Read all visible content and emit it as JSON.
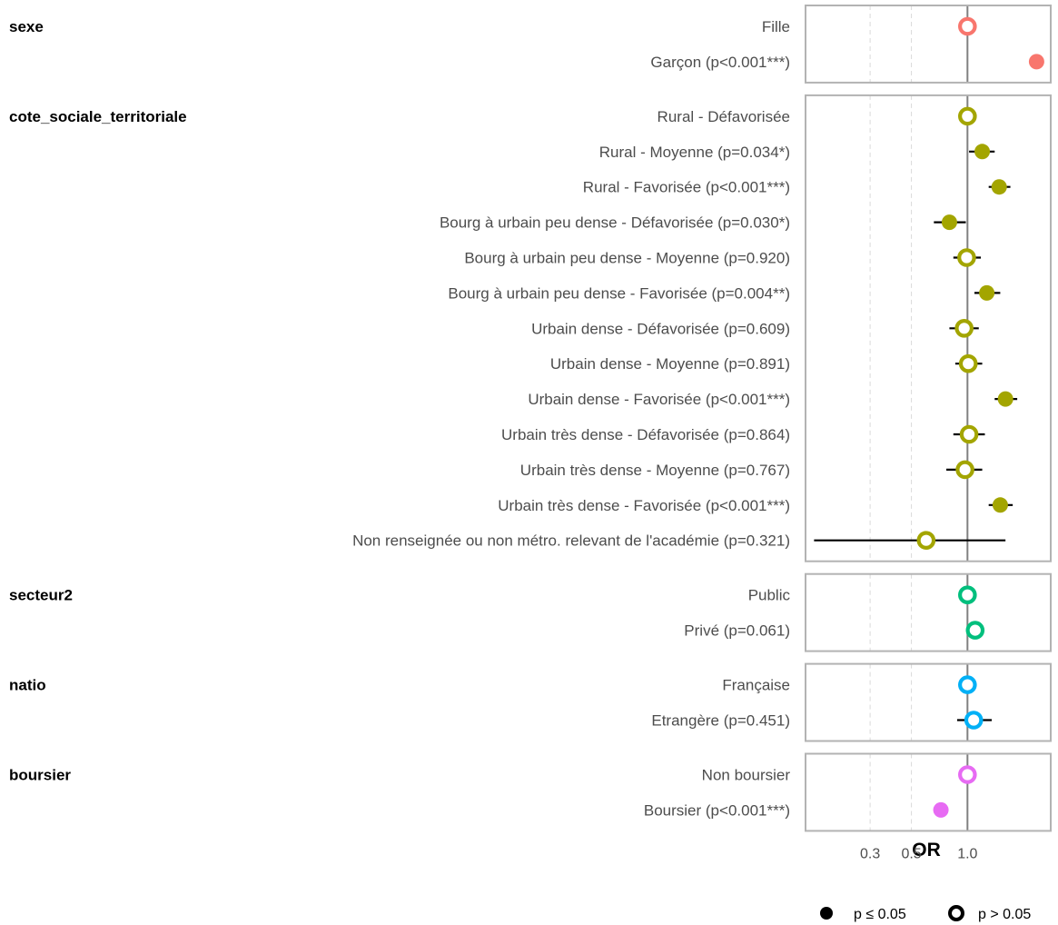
{
  "chart_data": {
    "type": "forest",
    "xlabel": "OR",
    "x_scale": "log",
    "xlim": [
      0.135,
      2.8
    ],
    "x_ticks": [
      {
        "value": 0.3,
        "label": "0.3"
      },
      {
        "value": 0.5,
        "label": "0.5"
      },
      {
        "value": 1.0,
        "label": "1.0"
      }
    ],
    "reference_line": 1.0,
    "groups": [
      {
        "name": "sexe",
        "color": "#F8766D",
        "rows": [
          {
            "label": "Fille",
            "or": 1.0,
            "ci": null,
            "significant": false
          },
          {
            "label": "Garçon (p<0.001***)",
            "or": 2.35,
            "ci": [
              2.25,
              2.45
            ],
            "significant": true
          }
        ]
      },
      {
        "name": "cote_sociale_territoriale",
        "color": "#A3A500",
        "rows": [
          {
            "label": "Rural - Défavorisée",
            "or": 1.0,
            "ci": null,
            "significant": false
          },
          {
            "label": "Rural - Moyenne (p=0.034*)",
            "or": 1.2,
            "ci": [
              1.02,
              1.4
            ],
            "significant": true
          },
          {
            "label": "Rural - Favorisée (p<0.001***)",
            "or": 1.48,
            "ci": [
              1.3,
              1.7
            ],
            "significant": true
          },
          {
            "label": "Bourg à urbain peu dense - Défavorisée (p=0.030*)",
            "or": 0.8,
            "ci": [
              0.66,
              0.98
            ],
            "significant": true
          },
          {
            "label": "Bourg à urbain peu dense - Moyenne (p=0.920)",
            "or": 0.99,
            "ci": [
              0.84,
              1.18
            ],
            "significant": false
          },
          {
            "label": "Bourg à urbain peu dense - Favorisée (p=0.004**)",
            "or": 1.27,
            "ci": [
              1.09,
              1.5
            ],
            "significant": true
          },
          {
            "label": "Urbain dense - Défavorisée (p=0.609)",
            "or": 0.96,
            "ci": [
              0.8,
              1.15
            ],
            "significant": false
          },
          {
            "label": "Urbain dense - Moyenne (p=0.891)",
            "or": 1.01,
            "ci": [
              0.86,
              1.2
            ],
            "significant": false
          },
          {
            "label": "Urbain dense - Favorisée (p<0.001***)",
            "or": 1.6,
            "ci": [
              1.4,
              1.85
            ],
            "significant": true
          },
          {
            "label": "Urbain très dense - Défavorisée (p=0.864)",
            "or": 1.02,
            "ci": [
              0.84,
              1.24
            ],
            "significant": false
          },
          {
            "label": "Urbain très dense - Moyenne (p=0.767)",
            "or": 0.97,
            "ci": [
              0.77,
              1.2
            ],
            "significant": false
          },
          {
            "label": "Urbain très dense - Favorisée (p<0.001***)",
            "or": 1.5,
            "ci": [
              1.3,
              1.75
            ],
            "significant": true
          },
          {
            "label": "Non renseignée ou non métro. relevant de l'académie (p=0.321)",
            "or": 0.6,
            "ci": [
              0.15,
              1.6
            ],
            "significant": false
          }
        ]
      },
      {
        "name": "secteur2",
        "color": "#00BF7D",
        "rows": [
          {
            "label": "Public",
            "or": 1.0,
            "ci": null,
            "significant": false
          },
          {
            "label": "Privé (p=0.061)",
            "or": 1.1,
            "ci": [
              1.0,
              1.2
            ],
            "significant": false
          }
        ]
      },
      {
        "name": "natio",
        "color": "#00B0F6",
        "rows": [
          {
            "label": "Française",
            "or": 1.0,
            "ci": null,
            "significant": false
          },
          {
            "label": "Etrangère (p=0.451)",
            "or": 1.08,
            "ci": [
              0.88,
              1.35
            ],
            "significant": false
          }
        ]
      },
      {
        "name": "boursier",
        "color": "#E76BF3",
        "rows": [
          {
            "label": "Non boursier",
            "or": 1.0,
            "ci": null,
            "significant": false
          },
          {
            "label": "Boursier (p<0.001***)",
            "or": 0.72,
            "ci": [
              0.66,
              0.78
            ],
            "significant": true
          }
        ]
      }
    ],
    "legend": {
      "position": "bottom-right",
      "items": [
        {
          "label": "p ≤ 0.05",
          "symbol": "filled-circle"
        },
        {
          "label": "p > 0.05",
          "symbol": "open-circle"
        }
      ]
    }
  }
}
